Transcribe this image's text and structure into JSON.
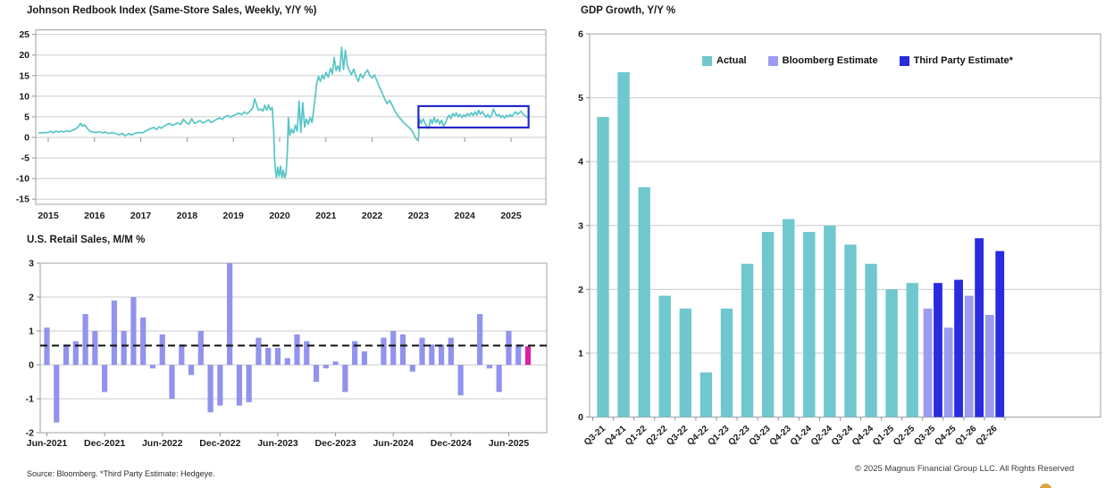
{
  "footer": {
    "source": "Source: Bloomberg. *Third Party Estimate: Hedgeye.",
    "copyright": "© 2025 Magnus Financial Group LLC. All Rights Reserved"
  },
  "chart_data": [
    {
      "type": "line",
      "title": "Johnson Redbook Index (Same-Store Sales, Weekly, Y/Y %)",
      "line_color": "#58C5C6",
      "ylim": [
        -15,
        25
      ],
      "yticks": [
        25,
        20,
        15,
        10,
        5,
        0,
        -5,
        -10,
        -15
      ],
      "xticks": [
        2015,
        2016,
        2017,
        2018,
        2019,
        2020,
        2021,
        2022,
        2023,
        2024,
        2025
      ],
      "grid": "horizontal",
      "highlight_box": {
        "x0": 2023.0,
        "x1": 2025.38,
        "y0": 2.4,
        "y1": 7.6,
        "color": "#2528CC"
      },
      "points": [
        [
          2014.8,
          1.1
        ],
        [
          2015.0,
          1.2
        ],
        [
          2015.06,
          1.5
        ],
        [
          2015.1,
          1.1
        ],
        [
          2015.16,
          1.5
        ],
        [
          2015.22,
          1.3
        ],
        [
          2015.28,
          1.5
        ],
        [
          2015.34,
          1.3
        ],
        [
          2015.4,
          1.6
        ],
        [
          2015.46,
          1.4
        ],
        [
          2015.52,
          1.7
        ],
        [
          2015.58,
          2.0
        ],
        [
          2015.64,
          2.5
        ],
        [
          2015.7,
          3.4
        ],
        [
          2015.74,
          2.7
        ],
        [
          2015.78,
          3.1
        ],
        [
          2015.84,
          2.2
        ],
        [
          2015.9,
          1.5
        ],
        [
          2015.96,
          1.3
        ],
        [
          2016.04,
          1.2
        ],
        [
          2016.1,
          1.4
        ],
        [
          2016.16,
          1.1
        ],
        [
          2016.24,
          1.3
        ],
        [
          2016.3,
          0.9
        ],
        [
          2016.38,
          1.2
        ],
        [
          2016.46,
          0.9
        ],
        [
          2016.54,
          0.6
        ],
        [
          2016.6,
          1.0
        ],
        [
          2016.66,
          0.4
        ],
        [
          2016.74,
          0.9
        ],
        [
          2016.8,
          0.6
        ],
        [
          2016.88,
          1.0
        ],
        [
          2016.96,
          1.2
        ],
        [
          2017.04,
          1.1
        ],
        [
          2017.12,
          1.6
        ],
        [
          2017.2,
          2.1
        ],
        [
          2017.28,
          2.4
        ],
        [
          2017.34,
          1.9
        ],
        [
          2017.4,
          2.6
        ],
        [
          2017.44,
          2.2
        ],
        [
          2017.5,
          2.7
        ],
        [
          2017.56,
          3.1
        ],
        [
          2017.62,
          3.4
        ],
        [
          2017.68,
          2.9
        ],
        [
          2017.74,
          3.2
        ],
        [
          2017.8,
          3.5
        ],
        [
          2017.86,
          3.1
        ],
        [
          2017.92,
          4.4
        ],
        [
          2017.98,
          3.6
        ],
        [
          2018.04,
          3.2
        ],
        [
          2018.1,
          4.5
        ],
        [
          2018.16,
          3.4
        ],
        [
          2018.22,
          3.7
        ],
        [
          2018.28,
          4.1
        ],
        [
          2018.34,
          3.5
        ],
        [
          2018.4,
          3.8
        ],
        [
          2018.46,
          4.3
        ],
        [
          2018.52,
          3.6
        ],
        [
          2018.58,
          4.0
        ],
        [
          2018.64,
          4.4
        ],
        [
          2018.7,
          4.7
        ],
        [
          2018.76,
          4.4
        ],
        [
          2018.82,
          5.0
        ],
        [
          2018.88,
          5.3
        ],
        [
          2018.94,
          4.9
        ],
        [
          2019.0,
          5.3
        ],
        [
          2019.06,
          5.6
        ],
        [
          2019.12,
          5.9
        ],
        [
          2019.18,
          5.5
        ],
        [
          2019.24,
          6.2
        ],
        [
          2019.3,
          5.7
        ],
        [
          2019.36,
          6.4
        ],
        [
          2019.42,
          7.2
        ],
        [
          2019.46,
          9.4
        ],
        [
          2019.5,
          8.0
        ],
        [
          2019.54,
          6.6
        ],
        [
          2019.6,
          6.9
        ],
        [
          2019.64,
          6.4
        ],
        [
          2019.68,
          7.8
        ],
        [
          2019.72,
          6.6
        ],
        [
          2019.76,
          7.9
        ],
        [
          2019.8,
          6.7
        ],
        [
          2019.84,
          7.3
        ],
        [
          2019.87,
          2.0
        ],
        [
          2019.89,
          -5.0
        ],
        [
          2019.91,
          -8.0
        ],
        [
          2019.93,
          -9.8
        ],
        [
          2019.96,
          -7.2
        ],
        [
          2019.99,
          -9.5
        ],
        [
          2020.02,
          -7.0
        ],
        [
          2020.05,
          -9.7
        ],
        [
          2020.08,
          -8.0
        ],
        [
          2020.11,
          -9.9
        ],
        [
          2020.14,
          -8.5
        ],
        [
          2020.17,
          -3.0
        ],
        [
          2020.19,
          4.8
        ],
        [
          2020.22,
          0.5
        ],
        [
          2020.26,
          2.0
        ],
        [
          2020.3,
          1.0
        ],
        [
          2020.34,
          3.0
        ],
        [
          2020.38,
          1.5
        ],
        [
          2020.42,
          8.8
        ],
        [
          2020.46,
          1.2
        ],
        [
          2020.5,
          8.4
        ],
        [
          2020.54,
          2.5
        ],
        [
          2020.58,
          4.5
        ],
        [
          2020.62,
          3.2
        ],
        [
          2020.66,
          4.8
        ],
        [
          2020.7,
          3.6
        ],
        [
          2020.76,
          9.0
        ],
        [
          2020.8,
          13.0
        ],
        [
          2020.84,
          14.8
        ],
        [
          2020.88,
          13.6
        ],
        [
          2020.92,
          15.2
        ],
        [
          2020.96,
          14.2
        ],
        [
          2021.0,
          15.8
        ],
        [
          2021.05,
          14.6
        ],
        [
          2021.1,
          16.8
        ],
        [
          2021.14,
          15.4
        ],
        [
          2021.18,
          19.4
        ],
        [
          2021.22,
          16.2
        ],
        [
          2021.26,
          17.4
        ],
        [
          2021.3,
          16.0
        ],
        [
          2021.34,
          21.9
        ],
        [
          2021.38,
          16.5
        ],
        [
          2021.42,
          21.2
        ],
        [
          2021.46,
          17.6
        ],
        [
          2021.5,
          16.4
        ],
        [
          2021.55,
          15.2
        ],
        [
          2021.6,
          16.6
        ],
        [
          2021.65,
          14.8
        ],
        [
          2021.7,
          13.6
        ],
        [
          2021.75,
          15.4
        ],
        [
          2021.8,
          14.4
        ],
        [
          2021.85,
          15.6
        ],
        [
          2021.9,
          16.4
        ],
        [
          2021.95,
          15.0
        ],
        [
          2022.0,
          14.4
        ],
        [
          2022.05,
          15.2
        ],
        [
          2022.1,
          13.8
        ],
        [
          2022.15,
          12.4
        ],
        [
          2022.2,
          11.2
        ],
        [
          2022.26,
          9.6
        ],
        [
          2022.32,
          8.2
        ],
        [
          2022.38,
          9.0
        ],
        [
          2022.44,
          7.6
        ],
        [
          2022.5,
          6.2
        ],
        [
          2022.56,
          5.2
        ],
        [
          2022.62,
          4.4
        ],
        [
          2022.68,
          3.6
        ],
        [
          2022.74,
          3.0
        ],
        [
          2022.8,
          2.4
        ],
        [
          2022.86,
          1.6
        ],
        [
          2022.9,
          0.8
        ],
        [
          2022.94,
          -0.2
        ],
        [
          2022.97,
          -0.6
        ],
        [
          2023.0,
          -0.3
        ],
        [
          2023.02,
          4.6
        ],
        [
          2023.06,
          3.4
        ],
        [
          2023.1,
          4.5
        ],
        [
          2023.14,
          3.5
        ],
        [
          2023.18,
          2.6
        ],
        [
          2023.22,
          2.2
        ],
        [
          2023.26,
          4.4
        ],
        [
          2023.3,
          3.4
        ],
        [
          2023.34,
          4.8
        ],
        [
          2023.38,
          3.6
        ],
        [
          2023.42,
          4.4
        ],
        [
          2023.46,
          3.2
        ],
        [
          2023.5,
          4.2
        ],
        [
          2023.54,
          2.8
        ],
        [
          2023.58,
          3.4
        ],
        [
          2023.62,
          4.6
        ],
        [
          2023.66,
          5.4
        ],
        [
          2023.7,
          4.6
        ],
        [
          2023.74,
          5.8
        ],
        [
          2023.78,
          5.2
        ],
        [
          2023.82,
          5.9
        ],
        [
          2023.86,
          5.0
        ],
        [
          2023.9,
          5.6
        ],
        [
          2023.94,
          4.8
        ],
        [
          2023.98,
          5.5
        ],
        [
          2024.02,
          5.0
        ],
        [
          2024.06,
          5.8
        ],
        [
          2024.1,
          5.2
        ],
        [
          2024.14,
          6.0
        ],
        [
          2024.18,
          5.3
        ],
        [
          2024.22,
          6.2
        ],
        [
          2024.26,
          5.4
        ],
        [
          2024.3,
          6.6
        ],
        [
          2024.34,
          5.6
        ],
        [
          2024.38,
          6.3
        ],
        [
          2024.42,
          5.5
        ],
        [
          2024.46,
          4.9
        ],
        [
          2024.5,
          5.6
        ],
        [
          2024.54,
          4.8
        ],
        [
          2024.58,
          5.4
        ],
        [
          2024.62,
          6.9
        ],
        [
          2024.66,
          5.8
        ],
        [
          2024.7,
          5.2
        ],
        [
          2024.74,
          5.6
        ],
        [
          2024.78,
          4.8
        ],
        [
          2024.82,
          5.3
        ],
        [
          2024.86,
          4.7
        ],
        [
          2024.9,
          5.4
        ],
        [
          2024.94,
          5.0
        ],
        [
          2024.98,
          5.5
        ],
        [
          2025.02,
          5.0
        ],
        [
          2025.06,
          5.7
        ],
        [
          2025.1,
          6.2
        ],
        [
          2025.14,
          5.6
        ],
        [
          2025.18,
          6.0
        ],
        [
          2025.22,
          6.3
        ],
        [
          2025.26,
          5.7
        ],
        [
          2025.3,
          5.3
        ],
        [
          2025.35,
          4.9
        ]
      ]
    },
    {
      "type": "bar",
      "title": "U.S. Retail Sales, M/M %",
      "bar_color": "#9193ED",
      "highlight_bar_color": "#DE1FA4",
      "highlight_bar_index": 50,
      "dashed_avg_line": 0.57,
      "ylim": [
        -2,
        3
      ],
      "yticks": [
        3,
        2,
        1,
        0,
        -1,
        -2
      ],
      "xtick_labels": [
        "Jun-2021",
        "Dec-2021",
        "Jun-2022",
        "Dec-2022",
        "Jun-2023",
        "Dec-2023",
        "Jun-2024",
        "Dec-2024",
        "Jun-2025"
      ],
      "xtick_indices": [
        0,
        6,
        12,
        18,
        24,
        30,
        36,
        42,
        48
      ],
      "values": [
        1.1,
        -1.7,
        0.6,
        0.7,
        1.5,
        1.0,
        -0.8,
        1.9,
        1.0,
        2.0,
        1.4,
        -0.1,
        0.9,
        -1.0,
        0.6,
        -0.3,
        1.0,
        -1.4,
        -1.2,
        3.0,
        -1.2,
        -1.1,
        0.8,
        0.5,
        0.5,
        0.2,
        0.9,
        0.7,
        -0.5,
        -0.1,
        0.1,
        -0.8,
        0.7,
        0.4,
        0.0,
        0.8,
        1.0,
        0.9,
        -0.2,
        0.8,
        0.6,
        0.6,
        0.8,
        -0.9,
        0.0,
        1.5,
        -0.1,
        -0.8,
        1.0,
        0.6,
        0.55
      ]
    },
    {
      "type": "bar",
      "title": "GDP Growth, Y/Y %",
      "ylim": [
        0,
        6
      ],
      "yticks": [
        0,
        1,
        2,
        3,
        4,
        5,
        6
      ],
      "categories": [
        "Q3-21",
        "Q4-21",
        "Q1-22",
        "Q2-22",
        "Q3-22",
        "Q4-22",
        "Q1-23",
        "Q2-23",
        "Q3-23",
        "Q4-23",
        "Q1-24",
        "Q2-24",
        "Q3-24",
        "Q4-24",
        "Q1-25",
        "Q2-25",
        "Q3-25",
        "Q4-25",
        "Q1-26",
        "Q2-26"
      ],
      "legend": [
        {
          "label": "Actual",
          "color": "#6FC8CE"
        },
        {
          "label": "Bloomberg Estimate",
          "color": "#9B9BEF"
        },
        {
          "label": "Third Party Estimate*",
          "color": "#2A2ADF"
        }
      ],
      "series": [
        {
          "name": "Actual",
          "color": "#6FC8CE",
          "values": [
            4.7,
            5.4,
            3.6,
            1.9,
            1.7,
            0.7,
            1.7,
            2.4,
            2.9,
            3.1,
            2.9,
            3.0,
            2.7,
            2.4,
            2.0,
            2.1,
            null,
            null,
            null,
            null
          ]
        },
        {
          "name": "Bloomberg Estimate",
          "color": "#9B9BEF",
          "values": [
            null,
            null,
            null,
            null,
            null,
            null,
            null,
            null,
            null,
            null,
            null,
            null,
            null,
            null,
            null,
            null,
            1.7,
            1.4,
            1.9,
            1.6
          ]
        },
        {
          "name": "Third Party Estimate*",
          "color": "#2A2ADF",
          "values": [
            null,
            null,
            null,
            null,
            null,
            null,
            null,
            null,
            null,
            null,
            null,
            null,
            null,
            null,
            null,
            null,
            2.1,
            2.15,
            2.8,
            2.6
          ]
        }
      ]
    }
  ],
  "style": {
    "grid_color": "#CBCBCB",
    "border_color": "#A0A0A0",
    "tick_color": "#8F8F8F",
    "text_color": "#1A1A1A"
  }
}
